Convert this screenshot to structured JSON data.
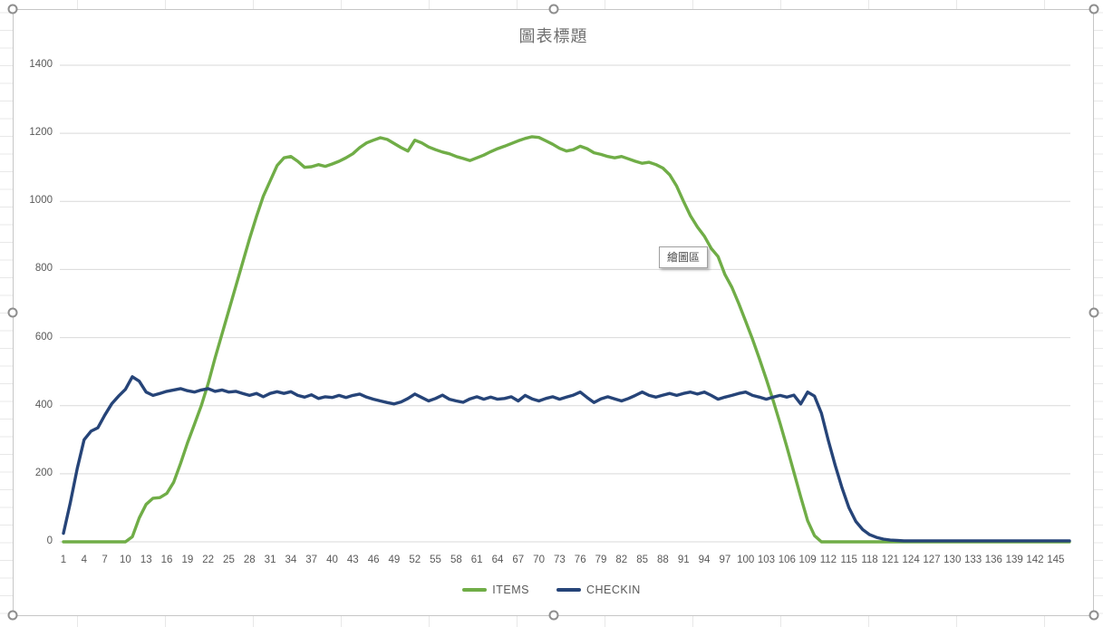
{
  "chart": {
    "title": "圖表標題",
    "tooltip": "繪圖區"
  },
  "chart_data": {
    "type": "line",
    "title": "圖表標題",
    "xlabel": "",
    "ylabel": "",
    "ylim": [
      0,
      1400
    ],
    "yticks": [
      0,
      200,
      400,
      600,
      800,
      1000,
      1200,
      1400
    ],
    "xtick_labels": [
      "1",
      "4",
      "7",
      "10",
      "13",
      "16",
      "19",
      "22",
      "25",
      "28",
      "31",
      "34",
      "37",
      "40",
      "43",
      "46",
      "49",
      "52",
      "55",
      "58",
      "61",
      "64",
      "67",
      "70",
      "73",
      "76",
      "79",
      "82",
      "85",
      "88",
      "91",
      "94",
      "97",
      "100",
      "103",
      "106",
      "109",
      "112",
      "115",
      "118",
      "121",
      "124",
      "127",
      "130",
      "133",
      "136",
      "139",
      "142",
      "145"
    ],
    "categories_start": 1,
    "categories_end": 147,
    "grid": "horizontal",
    "legend_position": "bottom",
    "series": [
      {
        "name": "ITEMS",
        "color": "#70AD47",
        "values": [
          0,
          0,
          0,
          0,
          0,
          0,
          0,
          0,
          0,
          0,
          15,
          70,
          110,
          128,
          130,
          142,
          175,
          230,
          290,
          345,
          400,
          465,
          540,
          610,
          680,
          750,
          820,
          890,
          955,
          1015,
          1060,
          1105,
          1128,
          1132,
          1118,
          1100,
          1102,
          1108,
          1103,
          1110,
          1118,
          1128,
          1140,
          1158,
          1172,
          1180,
          1187,
          1182,
          1170,
          1158,
          1148,
          1180,
          1172,
          1160,
          1152,
          1145,
          1140,
          1132,
          1126,
          1120,
          1128,
          1136,
          1146,
          1155,
          1162,
          1170,
          1178,
          1185,
          1190,
          1188,
          1178,
          1168,
          1156,
          1148,
          1152,
          1162,
          1155,
          1143,
          1138,
          1132,
          1128,
          1132,
          1125,
          1118,
          1112,
          1115,
          1108,
          1098,
          1078,
          1045,
          1000,
          958,
          925,
          898,
          862,
          838,
          785,
          748,
          700,
          648,
          595,
          538,
          478,
          415,
          348,
          278,
          205,
          132,
          62,
          18,
          0,
          0,
          0,
          0,
          0,
          0,
          0,
          0,
          0,
          0,
          0,
          0,
          0,
          0,
          0,
          0,
          0,
          0,
          0,
          0,
          0,
          0,
          0,
          0,
          0,
          0,
          0,
          0,
          0,
          0,
          0,
          0,
          0,
          0,
          0,
          0,
          0
        ]
      },
      {
        "name": "CHECKIN",
        "color": "#264478",
        "values": [
          25,
          115,
          215,
          300,
          325,
          335,
          372,
          405,
          428,
          448,
          485,
          472,
          440,
          430,
          436,
          442,
          446,
          450,
          444,
          440,
          446,
          450,
          442,
          446,
          440,
          442,
          436,
          430,
          436,
          426,
          436,
          441,
          436,
          441,
          430,
          425,
          432,
          421,
          426,
          424,
          430,
          424,
          430,
          434,
          425,
          419,
          414,
          409,
          405,
          411,
          421,
          434,
          424,
          414,
          421,
          431,
          419,
          414,
          410,
          420,
          426,
          419,
          425,
          419,
          421,
          426,
          414,
          430,
          420,
          414,
          421,
          426,
          419,
          425,
          431,
          440,
          424,
          409,
          420,
          426,
          420,
          414,
          421,
          430,
          440,
          430,
          425,
          431,
          436,
          430,
          436,
          440,
          434,
          440,
          430,
          419,
          425,
          430,
          436,
          440,
          430,
          425,
          419,
          425,
          430,
          425,
          431,
          405,
          440,
          428,
          378,
          298,
          225,
          158,
          100,
          60,
          36,
          21,
          13,
          8,
          5,
          4,
          3,
          3,
          3,
          3,
          3,
          3,
          3,
          3,
          3,
          3,
          3,
          3,
          3,
          3,
          3,
          3,
          3,
          3,
          3,
          3,
          3,
          3,
          3,
          3,
          3
        ]
      }
    ]
  }
}
